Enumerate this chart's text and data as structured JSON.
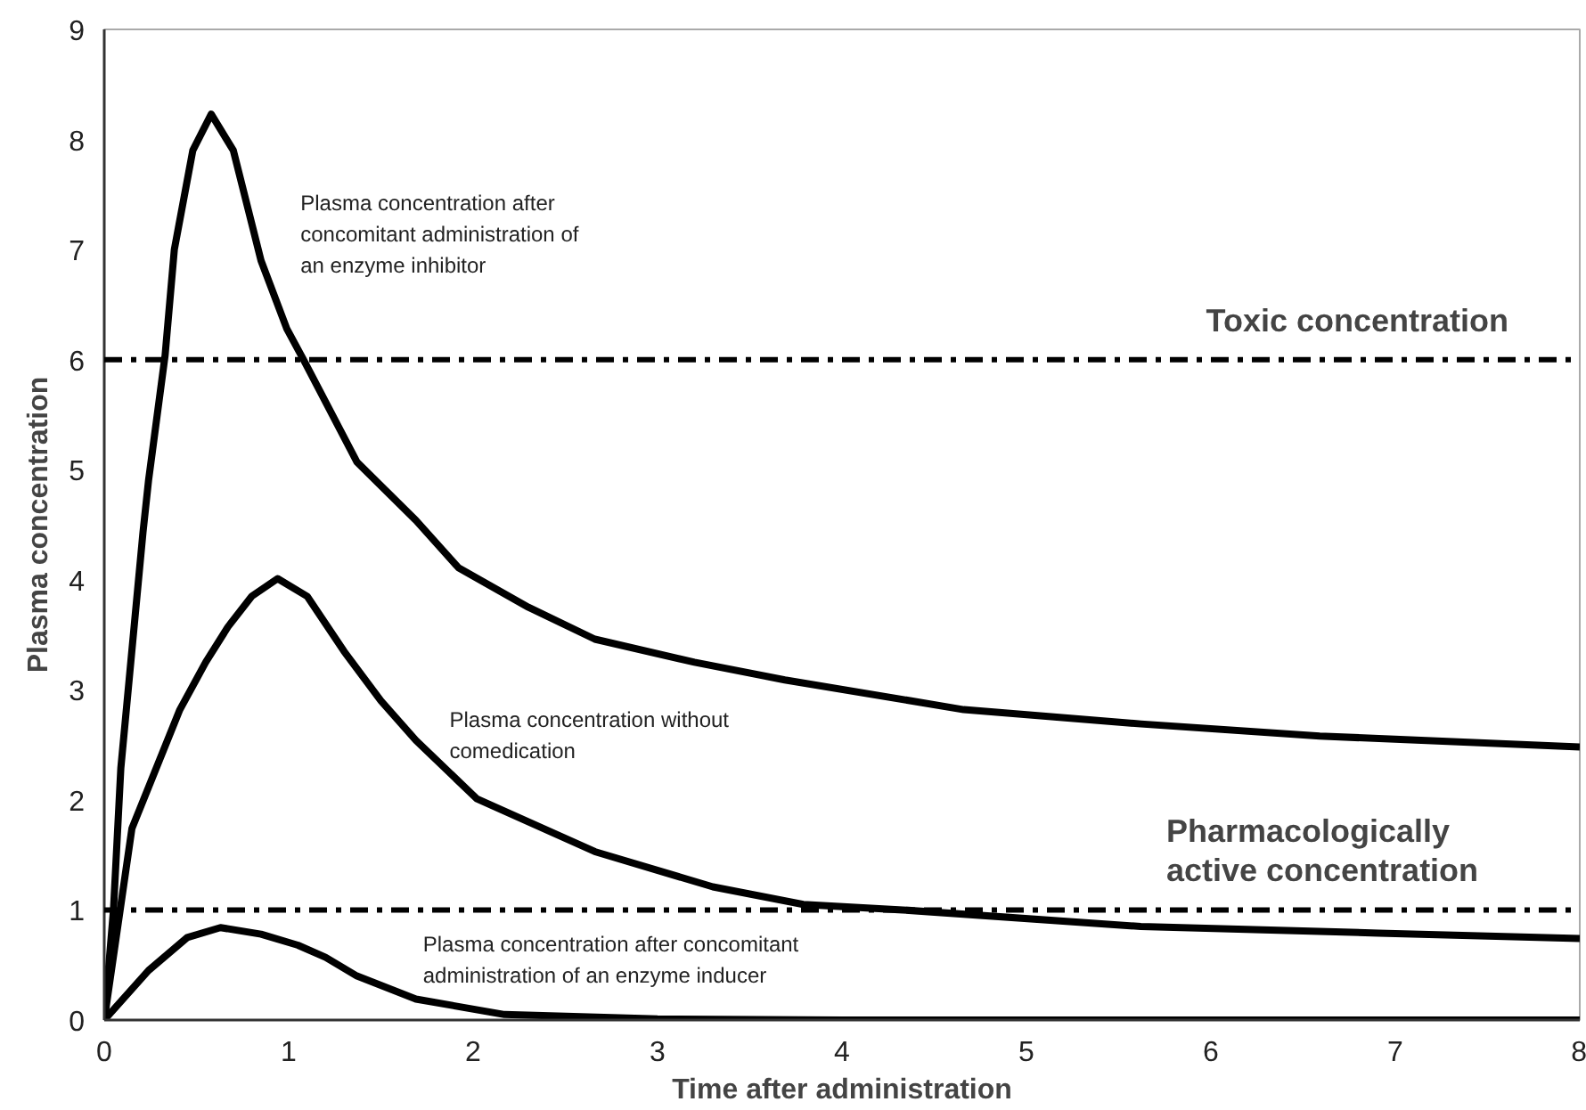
{
  "chart_data": {
    "type": "line",
    "xlabel": "Time after administration",
    "ylabel": "Plasma concentration",
    "xlim": [
      0,
      8
    ],
    "ylim": [
      0,
      9
    ],
    "xticks": [
      0,
      1,
      2,
      3,
      4,
      5,
      6,
      7,
      8
    ],
    "yticks": [
      0,
      1,
      2,
      3,
      4,
      5,
      6,
      7,
      8,
      9
    ],
    "grid": false,
    "marker": "none",
    "line_style": "solid",
    "series": [
      {
        "color": "#000000",
        "x": [
          0,
          0.05,
          0.09,
          0.21,
          0.24,
          0.33,
          0.38,
          0.48,
          0.58,
          0.7,
          0.85,
          0.99,
          1.08,
          1.37,
          1.69,
          1.92,
          2.3,
          2.66,
          3.2,
          3.69,
          4.66,
          5.62,
          6.59,
          8
        ],
        "values": [
          0,
          1,
          2.29,
          4.43,
          4.9,
          6.04,
          7.0,
          7.9,
          8.23,
          7.9,
          6.9,
          6.28,
          6.0,
          5.07,
          4.54,
          4.11,
          3.75,
          3.46,
          3.25,
          3.09,
          2.82,
          2.69,
          2.58,
          2.48
        ]
      },
      {
        "color": "#000000",
        "x": [
          0,
          0.15,
          0.41,
          0.55,
          0.67,
          0.8,
          0.94,
          1.1,
          1.3,
          1.5,
          1.69,
          2.02,
          2.66,
          3.3,
          3.79,
          4.33,
          5.62,
          6.91,
          8
        ],
        "values": [
          0,
          1.74,
          2.82,
          3.25,
          3.57,
          3.85,
          4.01,
          3.85,
          3.35,
          2.9,
          2.54,
          2.01,
          1.53,
          1.21,
          1.05,
          1.0,
          0.85,
          0.79,
          0.74
        ]
      },
      {
        "color": "#000000",
        "x": [
          0,
          0.24,
          0.45,
          0.63,
          0.85,
          1.05,
          1.2,
          1.37,
          1.69,
          2.17,
          3,
          4,
          8
        ],
        "values": [
          0,
          0.45,
          0.75,
          0.84,
          0.78,
          0.68,
          0.57,
          0.4,
          0.19,
          0.05,
          0.01,
          0,
          0
        ]
      }
    ],
    "ref_lines": [
      {
        "axis": "y",
        "value": 6,
        "label": "Toxic concentration",
        "line_style": "dashdot",
        "color": "#000000"
      },
      {
        "axis": "y",
        "value": 1,
        "label": "Pharmacologically\nactive concentration",
        "line_style": "dashdot",
        "color": "#000000"
      }
    ],
    "annotations": [
      "Plasma concentration after\nconcomitant administration of\nan enzyme inhibitor",
      "Plasma concentration without\ncomedication",
      "Plasma concentration after concomitant\nadministration of an enzyme inducer"
    ]
  }
}
